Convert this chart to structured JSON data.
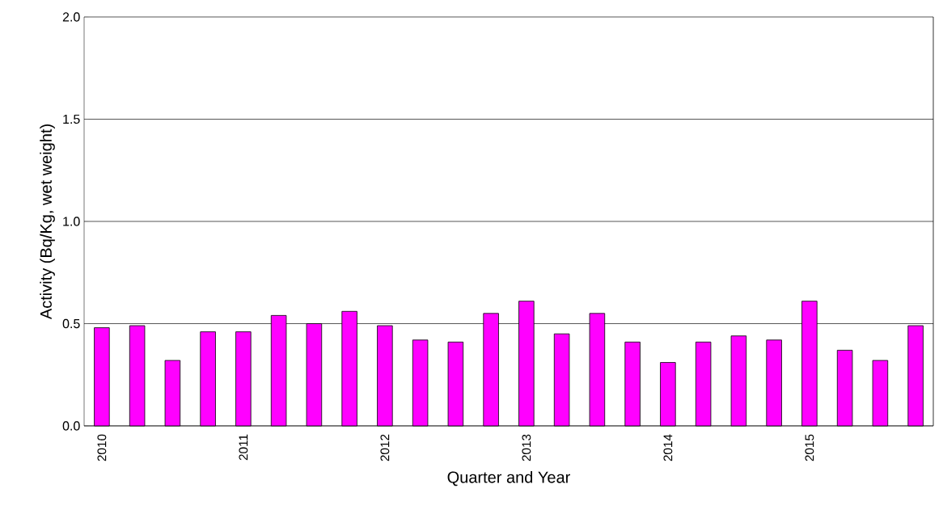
{
  "chart_data": {
    "type": "bar",
    "xlabel": "Quarter and Year",
    "ylabel": "Activity (Bq/Kg, wet weight)",
    "categories": [
      "2010",
      null,
      null,
      null,
      "2011",
      null,
      null,
      null,
      "2012",
      null,
      null,
      null,
      "2013",
      null,
      null,
      null,
      "2014",
      null,
      null,
      null,
      "2015",
      null,
      null,
      null
    ],
    "values": [
      0.48,
      0.49,
      0.32,
      0.46,
      0.46,
      0.54,
      0.5,
      0.56,
      0.49,
      0.42,
      0.41,
      0.55,
      0.61,
      0.45,
      0.55,
      0.41,
      0.31,
      0.41,
      0.44,
      0.42,
      0.61,
      0.37,
      0.32,
      0.49
    ],
    "color": "#ff00ff",
    "ylim": [
      0,
      2
    ],
    "yticks": [
      {
        "value": 0,
        "label": "0.0"
      },
      {
        "value": 0.5,
        "label": "0.5"
      },
      {
        "value": 1,
        "label": "1.0"
      },
      {
        "value": 1.5,
        "label": "1.5"
      },
      {
        "value": 2,
        "label": "2.0"
      }
    ],
    "grid": "y"
  }
}
